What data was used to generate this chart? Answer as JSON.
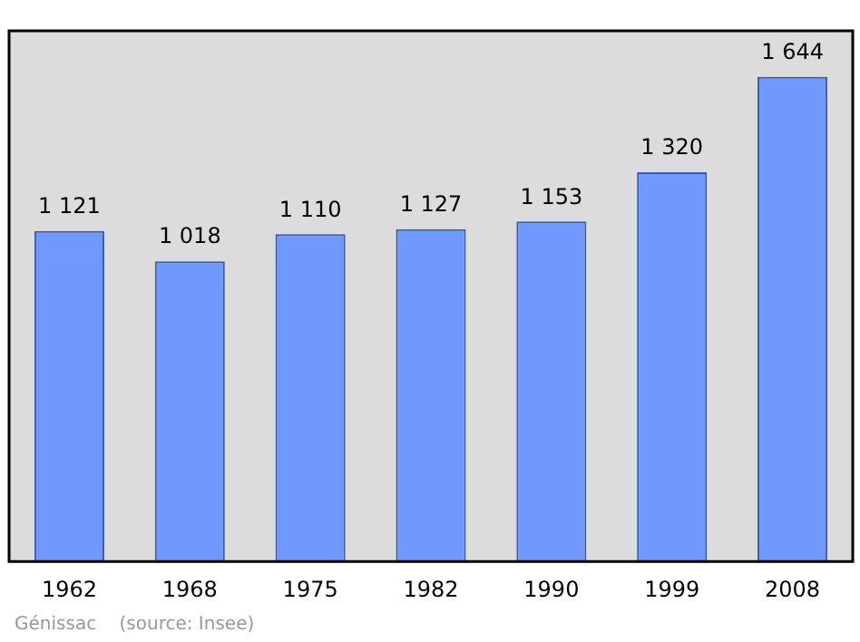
{
  "chart_data": {
    "type": "bar",
    "categories": [
      "1962",
      "1968",
      "1975",
      "1982",
      "1990",
      "1999",
      "2008"
    ],
    "values": [
      1121,
      1018,
      1110,
      1127,
      1153,
      1320,
      1644
    ],
    "value_labels": [
      "1 121",
      "1 018",
      "1 110",
      "1 127",
      "1 153",
      "1 320",
      "1 644"
    ],
    "color": "#7099ff",
    "annotations": [
      "Génissac    (source: Insee)"
    ],
    "grid": false,
    "legend": false
  }
}
